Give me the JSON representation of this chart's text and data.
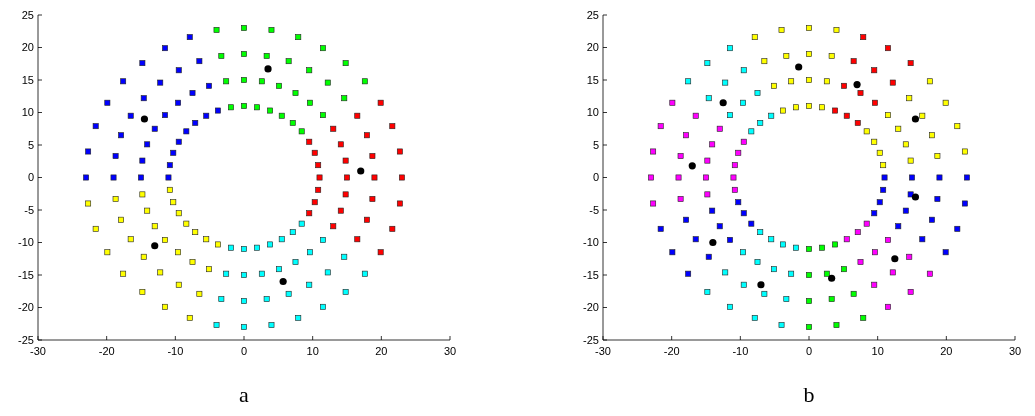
{
  "chart_data": [
    {
      "type": "scatter",
      "xlabel": "a",
      "xlim": [
        -30,
        30
      ],
      "xticks": [
        -30,
        -20,
        -10,
        0,
        10,
        20,
        30
      ],
      "ylim": [
        -25,
        25
      ],
      "yticks": [
        -25,
        -20,
        -15,
        -10,
        -5,
        0,
        5,
        10,
        15,
        20,
        25
      ],
      "series": [
        {
          "color": "#ff0000",
          "marker": "square",
          "x": [
            9.5,
            13,
            16.5,
            19.9,
            10.3,
            14.1,
            17.9,
            21.6,
            10.8,
            14.8,
            18.7,
            22.7,
            11,
            15,
            19,
            23,
            10.8,
            14.8,
            18.7,
            22.7,
            10.3,
            14.1,
            17.9,
            21.6,
            9.5,
            13,
            16.5,
            19.9
          ],
          "values": [
            -5.5,
            -7.5,
            -9.5,
            -11.5,
            -3.8,
            -5.1,
            -6.5,
            -7.9,
            -1.9,
            -2.6,
            -3.3,
            -4,
            0,
            0,
            0,
            0,
            1.9,
            2.6,
            3.3,
            4,
            3.8,
            5.1,
            6.5,
            7.9,
            5.5,
            7.5,
            9.5,
            11.5
          ]
        },
        {
          "color": "#00ff00",
          "marker": "square",
          "x": [
            8.4,
            11.5,
            14.6,
            17.6,
            7.1,
            9.6,
            12.2,
            14.8,
            5.5,
            7.5,
            9.5,
            11.5,
            3.8,
            5.1,
            6.5,
            7.9,
            1.9,
            2.6,
            3.3,
            4,
            0,
            0,
            0,
            0,
            -1.9,
            -2.6,
            -3.3,
            -4
          ],
          "values": [
            7.1,
            9.6,
            12.2,
            14.8,
            8.4,
            11.5,
            14.6,
            17.6,
            9.5,
            13,
            16.5,
            19.9,
            10.3,
            14.1,
            17.9,
            21.6,
            10.8,
            14.8,
            18.7,
            22.7,
            11,
            15,
            19,
            23,
            10.8,
            14.8,
            18.7,
            22.7
          ]
        },
        {
          "color": "#0000ff",
          "marker": "square",
          "x": [
            -3.8,
            -5.1,
            -6.5,
            -7.9,
            -5.5,
            -7.5,
            -9.5,
            -11.5,
            -7.1,
            -9.6,
            -12.2,
            -14.8,
            -8.4,
            -11.5,
            -14.6,
            -17.6,
            -9.5,
            -13,
            -16.5,
            -19.9,
            -10.3,
            -14.1,
            -17.9,
            -21.6,
            -10.8,
            -14.8,
            -18.7,
            -22.7,
            -11,
            -15,
            -19,
            -23
          ],
          "values": [
            10.3,
            14.1,
            17.9,
            21.6,
            9.5,
            13,
            16.5,
            19.9,
            8.4,
            11.5,
            14.6,
            17.6,
            7.1,
            9.6,
            12.2,
            14.8,
            5.5,
            7.5,
            9.5,
            11.5,
            3.8,
            5.1,
            6.5,
            7.9,
            1.9,
            2.6,
            3.3,
            4,
            0,
            0,
            0,
            0
          ]
        },
        {
          "color": "#ffff00",
          "marker": "square",
          "x": [
            -10.8,
            -14.8,
            -18.7,
            -22.7,
            -10.3,
            -14.1,
            -17.9,
            -21.6,
            -9.5,
            -13,
            -16.5,
            -19.9,
            -8.4,
            -11.5,
            -14.6,
            -17.6,
            -7.1,
            -9.6,
            -12.2,
            -14.8,
            -5.5,
            -7.5,
            -9.5,
            -11.5,
            -3.8,
            -5.1,
            -6.5,
            -7.9
          ],
          "values": [
            -1.9,
            -2.6,
            -3.3,
            -4,
            -3.8,
            -5.1,
            -6.5,
            -7.9,
            -5.5,
            -7.5,
            -9.5,
            -11.5,
            -7.1,
            -9.6,
            -12.2,
            -14.8,
            -8.4,
            -11.5,
            -14.6,
            -17.6,
            -9.5,
            -13,
            -16.5,
            -19.9,
            -10.3,
            -14.1,
            -17.9,
            -21.6
          ]
        },
        {
          "color": "#00ffff",
          "marker": "square",
          "x": [
            -1.9,
            -2.6,
            -3.3,
            -4,
            0,
            0,
            0,
            0,
            1.9,
            2.6,
            3.3,
            4,
            3.8,
            5.1,
            6.5,
            7.9,
            5.5,
            7.5,
            9.5,
            11.5,
            7.1,
            9.6,
            12.2,
            14.8,
            8.4,
            11.5,
            14.6,
            17.6
          ],
          "values": [
            -10.8,
            -14.8,
            -18.7,
            -22.7,
            -11,
            -15,
            -19,
            -23,
            -10.8,
            -14.8,
            -18.7,
            -22.7,
            -10.3,
            -14.1,
            -17.9,
            -21.6,
            -9.5,
            -13,
            -16.5,
            -19.9,
            -8.4,
            -11.5,
            -14.6,
            -17.6,
            -7.1,
            -9.6,
            -12.2,
            -14.8
          ]
        },
        {
          "color": "#000000",
          "marker": "circle",
          "x": [
            3.5,
            17,
            -14.5,
            -13,
            5.7
          ],
          "values": [
            16.7,
            1,
            9,
            -10.5,
            -16
          ]
        }
      ]
    },
    {
      "type": "scatter",
      "xlabel": "b",
      "xlim": [
        -30,
        30
      ],
      "xticks": [
        -30,
        -20,
        -10,
        0,
        10,
        20,
        30
      ],
      "ylim": [
        -25,
        25
      ],
      "yticks": [
        -25,
        -20,
        -15,
        -10,
        -5,
        0,
        5,
        10,
        15,
        20,
        25
      ],
      "series": [
        {
          "color": "#0000ff",
          "marker": "square",
          "x": [
            9.5,
            13,
            16.5,
            19.9,
            10.3,
            14.1,
            17.9,
            21.6,
            10.8,
            14.8,
            18.7,
            22.7,
            11,
            15,
            19,
            23,
            -10.3,
            -14.1,
            -17.9,
            -21.6,
            -9.5,
            -13,
            -16.5,
            -19.9,
            -8.4,
            -11.5,
            -14.6,
            -17.6
          ],
          "values": [
            -5.5,
            -7.5,
            -9.5,
            -11.5,
            -3.8,
            -5.1,
            -6.5,
            -7.9,
            -1.9,
            -2.6,
            -3.3,
            -4,
            0,
            0,
            0,
            0,
            -3.8,
            -5.1,
            -6.5,
            -7.9,
            -5.5,
            -7.5,
            -9.5,
            -11.5,
            -7.1,
            -9.6,
            -12.2,
            -14.8
          ]
        },
        {
          "color": "#ffff00",
          "marker": "square",
          "x": [
            10.8,
            14.8,
            18.7,
            22.7,
            10.3,
            14.1,
            17.9,
            21.6,
            9.5,
            13,
            16.5,
            19.9,
            8.4,
            11.5,
            14.6,
            17.6,
            1.9,
            2.6,
            3.3,
            4,
            0,
            0,
            0,
            0,
            -1.9,
            -2.6,
            -3.3,
            -4,
            -3.8,
            -5.1,
            -6.5,
            -7.9
          ],
          "values": [
            1.9,
            2.6,
            3.3,
            4,
            3.8,
            5.1,
            6.5,
            7.9,
            5.5,
            7.5,
            9.5,
            11.5,
            7.1,
            9.6,
            12.2,
            14.8,
            10.8,
            14.8,
            18.7,
            22.7,
            11,
            15,
            19,
            23,
            10.8,
            14.8,
            18.7,
            22.7,
            10.3,
            14.1,
            17.9,
            21.6
          ]
        },
        {
          "color": "#ff0000",
          "marker": "square",
          "x": [
            7.1,
            9.6,
            12.2,
            14.8,
            5.5,
            7.5,
            9.5,
            11.5,
            3.8,
            5.1,
            6.5,
            7.9
          ],
          "values": [
            8.4,
            11.5,
            14.6,
            17.6,
            9.5,
            13,
            16.5,
            19.9,
            10.3,
            14.1,
            17.9,
            21.6
          ]
        },
        {
          "color": "#00ffff",
          "marker": "square",
          "x": [
            -5.5,
            -7.5,
            -9.5,
            -11.5,
            -7.1,
            -9.6,
            -12.2,
            -14.8,
            -8.4,
            -11.5,
            -14.6,
            -17.6,
            -7.1,
            -9.6,
            -12.2,
            -14.8,
            -5.5,
            -7.5,
            -9.5,
            -11.5,
            -3.8,
            -5.1,
            -6.5,
            -7.9,
            -1.9,
            -2.6,
            -3.3,
            -4
          ],
          "values": [
            9.5,
            13,
            16.5,
            19.9,
            8.4,
            11.5,
            14.6,
            17.6,
            7.1,
            9.6,
            12.2,
            14.8,
            -8.4,
            -11.5,
            -14.6,
            -17.6,
            -9.5,
            -13,
            -16.5,
            -19.9,
            -10.3,
            -14.1,
            -17.9,
            -21.6,
            -10.8,
            -14.8,
            -18.7,
            -22.7
          ]
        },
        {
          "color": "#ff00ff",
          "marker": "square",
          "x": [
            -9.5,
            -13,
            -16.5,
            -19.9,
            -10.3,
            -14.1,
            -17.9,
            -21.6,
            -10.8,
            -14.8,
            -18.7,
            -22.7,
            -11,
            -15,
            -19,
            -23,
            -10.8,
            -14.8,
            -18.7,
            -22.7,
            5.5,
            7.5,
            9.5,
            11.5,
            7.1,
            9.6,
            12.2,
            14.8,
            8.4,
            11.5,
            14.6,
            17.6
          ],
          "values": [
            5.5,
            7.5,
            9.5,
            11.5,
            3.8,
            5.1,
            6.5,
            7.9,
            1.9,
            2.6,
            3.3,
            4,
            0,
            0,
            0,
            0,
            -1.9,
            -2.6,
            -3.3,
            -4,
            -9.5,
            -13,
            -16.5,
            -19.9,
            -8.4,
            -11.5,
            -14.6,
            -17.6,
            -7.1,
            -9.6,
            -12.2,
            -14.8
          ]
        },
        {
          "color": "#00ff00",
          "marker": "square",
          "x": [
            0,
            0,
            0,
            0,
            1.9,
            2.6,
            3.3,
            4,
            3.8,
            5.1,
            6.5,
            7.9
          ],
          "values": [
            -11,
            -15,
            -19,
            -23,
            -10.8,
            -14.8,
            -18.7,
            -22.7,
            -10.3,
            -14.1,
            -17.9,
            -21.6
          ]
        },
        {
          "color": "#000000",
          "marker": "circle",
          "x": [
            -1.5,
            7,
            -12.5,
            15.5,
            -17,
            15.5,
            -14,
            12.5,
            3.3,
            -7
          ],
          "values": [
            17,
            14.3,
            11.5,
            9,
            1.8,
            -3,
            -10,
            -12.5,
            -15.5,
            -16.5
          ]
        }
      ]
    }
  ]
}
